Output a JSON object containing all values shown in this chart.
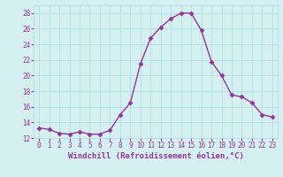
{
  "x": [
    0,
    1,
    2,
    3,
    4,
    5,
    6,
    7,
    8,
    9,
    10,
    11,
    12,
    13,
    14,
    15,
    16,
    17,
    18,
    19,
    20,
    21,
    22,
    23
  ],
  "y": [
    13.3,
    13.1,
    12.6,
    12.5,
    12.8,
    12.5,
    12.5,
    13.0,
    15.0,
    16.5,
    21.5,
    24.8,
    26.2,
    27.3,
    28.0,
    28.0,
    25.8,
    21.8,
    20.0,
    17.5,
    17.3,
    16.5,
    15.0,
    14.7
  ],
  "line_color": "#993399",
  "marker": "D",
  "marker_size": 2.5,
  "bg_color": "#d4f0f0",
  "grid_color": "#aadddd",
  "xlabel": "Windchill (Refroidissement éolien,°C)",
  "ylim": [
    12,
    29
  ],
  "yticks": [
    12,
    14,
    16,
    18,
    20,
    22,
    24,
    26,
    28
  ],
  "xlim": [
    -0.5,
    23.5
  ],
  "xticks": [
    0,
    1,
    2,
    3,
    4,
    5,
    6,
    7,
    8,
    9,
    10,
    11,
    12,
    13,
    14,
    15,
    16,
    17,
    18,
    19,
    20,
    21,
    22,
    23
  ],
  "tick_fontsize": 5.5,
  "xlabel_fontsize": 6.5,
  "linewidth": 1.0
}
